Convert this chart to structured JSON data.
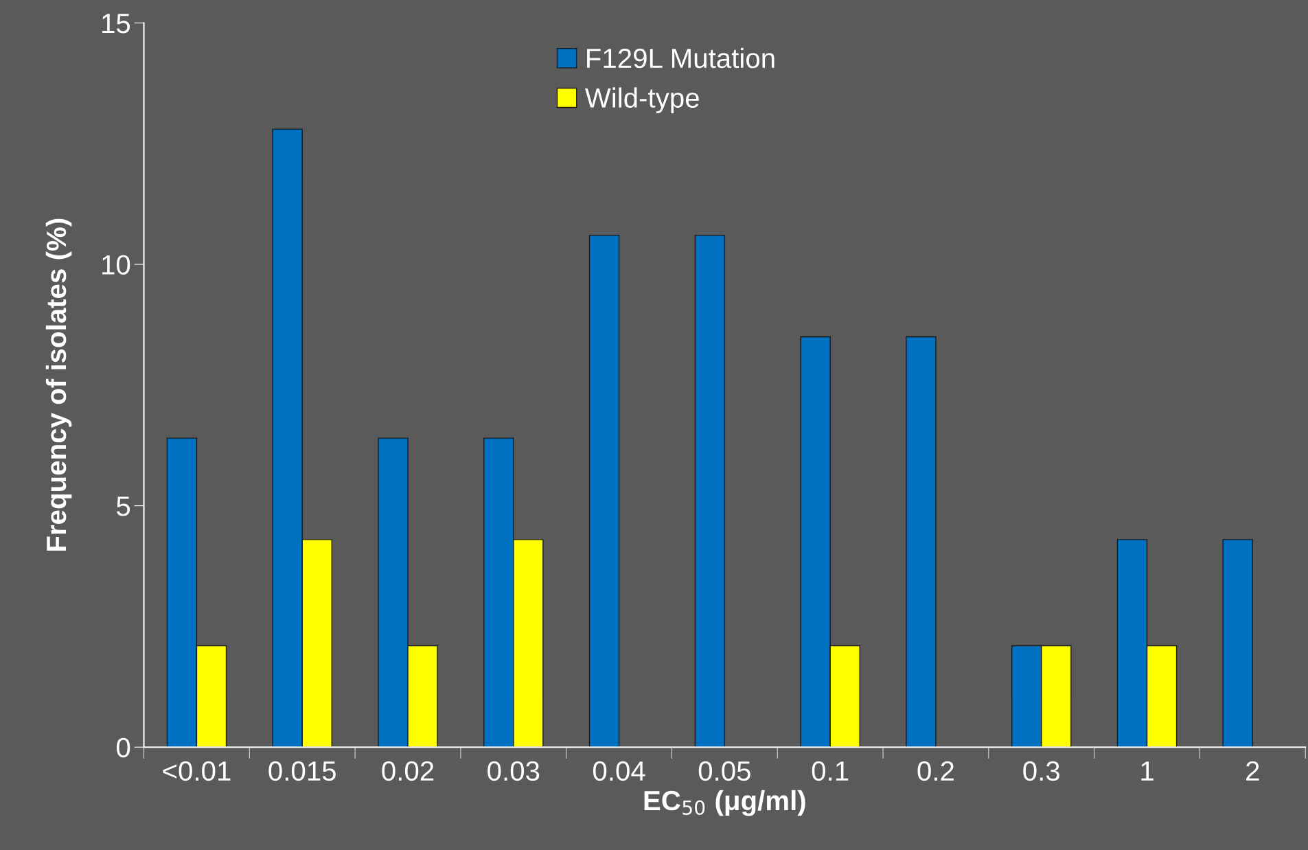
{
  "chart_data": {
    "type": "bar",
    "xlabel": "EC$_{50}$ (μg/ml)",
    "ylabel": "Frequency of isolates (%)",
    "categories": [
      "<0.01",
      "0.015",
      "0.02",
      "0.03",
      "0.04",
      "0.05",
      "0.1",
      "0.2",
      "0.3",
      "1",
      "2"
    ],
    "series": [
      {
        "name": "F129L Mutation",
        "color": "#0070c0",
        "values": [
          6.4,
          12.8,
          6.4,
          6.4,
          10.6,
          10.6,
          8.5,
          8.5,
          2.1,
          4.3,
          4.3
        ]
      },
      {
        "name": "Wild-type",
        "color": "#ffff00",
        "values": [
          2.1,
          4.3,
          2.1,
          4.3,
          null,
          null,
          2.1,
          null,
          2.1,
          2.1,
          null
        ]
      }
    ],
    "ylim": [
      0,
      15
    ],
    "yticks": [
      0,
      5,
      10,
      15
    ],
    "grid": false,
    "legend": "top"
  }
}
